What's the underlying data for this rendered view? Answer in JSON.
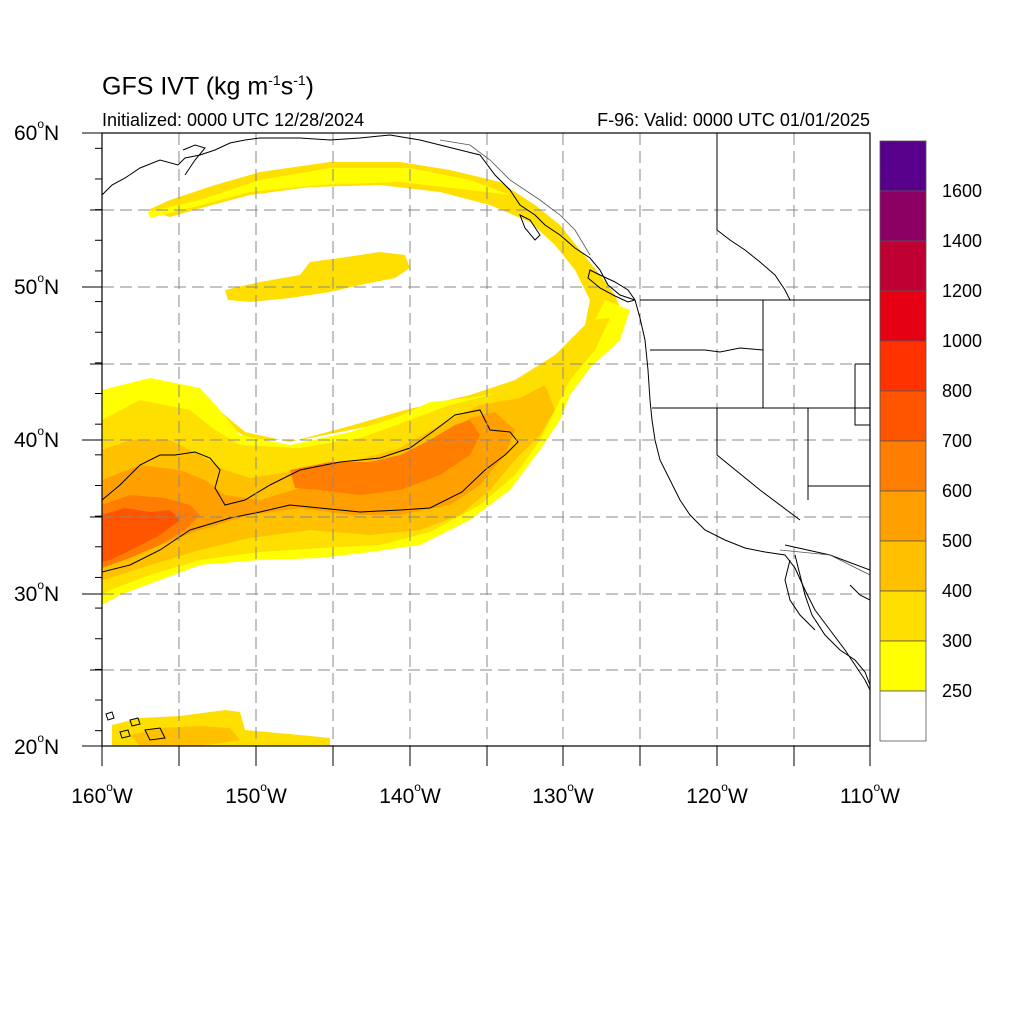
{
  "title": {
    "main": "GFS IVT (kg m",
    "sup1": "-1",
    "mid": "s",
    "sup2": "-1",
    "end": ")"
  },
  "initialized": "Initialized: 0000 UTC 12/28/2024",
  "valid": "F-96: Valid: 0000 UTC 01/01/2025",
  "lat_labels": [
    {
      "deg": "60",
      "hemi": "N"
    },
    {
      "deg": "50",
      "hemi": "N"
    },
    {
      "deg": "40",
      "hemi": "N"
    },
    {
      "deg": "30",
      "hemi": "N"
    },
    {
      "deg": "20",
      "hemi": "N"
    }
  ],
  "lon_labels": [
    {
      "deg": "160",
      "hemi": "W"
    },
    {
      "deg": "150",
      "hemi": "W"
    },
    {
      "deg": "140",
      "hemi": "W"
    },
    {
      "deg": "130",
      "hemi": "W"
    },
    {
      "deg": "120",
      "hemi": "W"
    },
    {
      "deg": "110",
      "hemi": "W"
    }
  ],
  "colorbar": {
    "labels": [
      "1600",
      "1400",
      "1200",
      "1000",
      "800",
      "700",
      "600",
      "500",
      "400",
      "300",
      "250"
    ],
    "colors": [
      "#58008c",
      "#8c0064",
      "#be0032",
      "#e60014",
      "#ff3200",
      "#ff5500",
      "#ff7d00",
      "#ffa000",
      "#ffc000",
      "#ffdf00",
      "#ffff00",
      "#ffffff"
    ]
  },
  "ivt_colors": {
    "c250": "#ffff00",
    "c300": "#ffdf00",
    "c400": "#ffc000",
    "c500": "#ffa000",
    "c600": "#ff7d00",
    "c700": "#ff5500"
  },
  "map_extent": {
    "lon": [
      -160,
      -110
    ],
    "lat": [
      20,
      60
    ]
  }
}
